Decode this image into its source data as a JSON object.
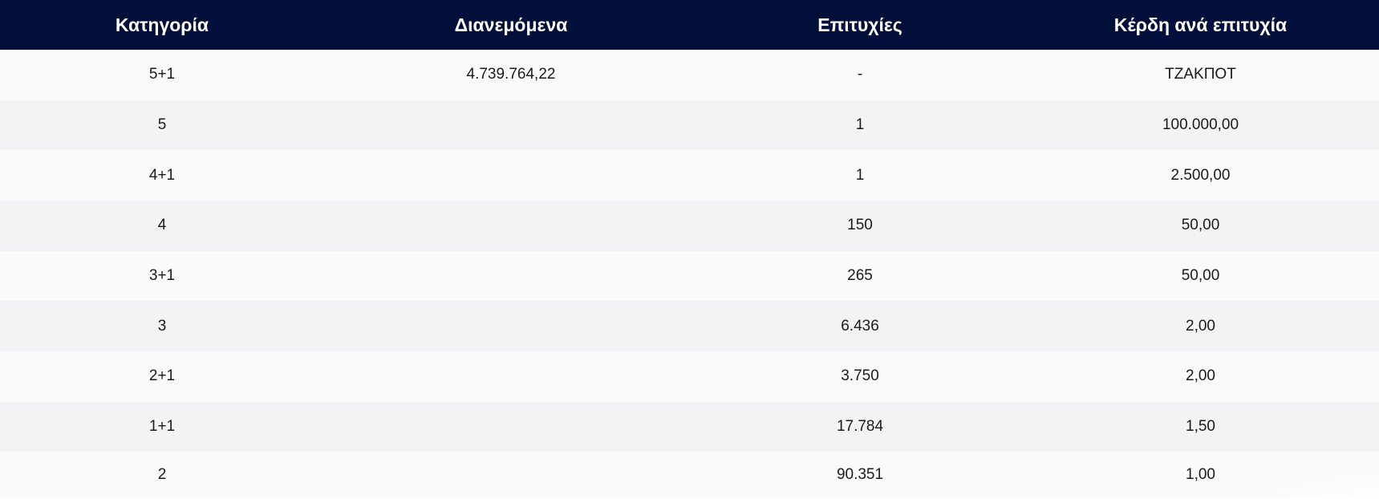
{
  "colors": {
    "header_background": "#030f3b",
    "header_text": "#ffffff",
    "row_odd": "#fafafa",
    "row_even": "#f3f3f5",
    "cell_text": "#1a1a1a"
  },
  "table": {
    "headers": [
      "Κατηγορία",
      "Διανεμόμενα",
      "Επιτυχίες",
      "Κέρδη ανά επιτυχία"
    ],
    "rows": [
      {
        "category": "5+1",
        "distributed": "4.739.764,22",
        "winners": "-",
        "prize": "ΤΖΑΚΠΟΤ"
      },
      {
        "category": "5",
        "distributed": "",
        "winners": "1",
        "prize": "100.000,00"
      },
      {
        "category": "4+1",
        "distributed": "",
        "winners": "1",
        "prize": "2.500,00"
      },
      {
        "category": "4",
        "distributed": "",
        "winners": "150",
        "prize": "50,00"
      },
      {
        "category": "3+1",
        "distributed": "",
        "winners": "265",
        "prize": "50,00"
      },
      {
        "category": "3",
        "distributed": "",
        "winners": "6.436",
        "prize": "2,00"
      },
      {
        "category": "2+1",
        "distributed": "",
        "winners": "3.750",
        "prize": "2,00"
      },
      {
        "category": "1+1",
        "distributed": "",
        "winners": "17.784",
        "prize": "1,50"
      },
      {
        "category": "2",
        "distributed": "",
        "winners": "90.351",
        "prize": "1,00"
      }
    ]
  }
}
